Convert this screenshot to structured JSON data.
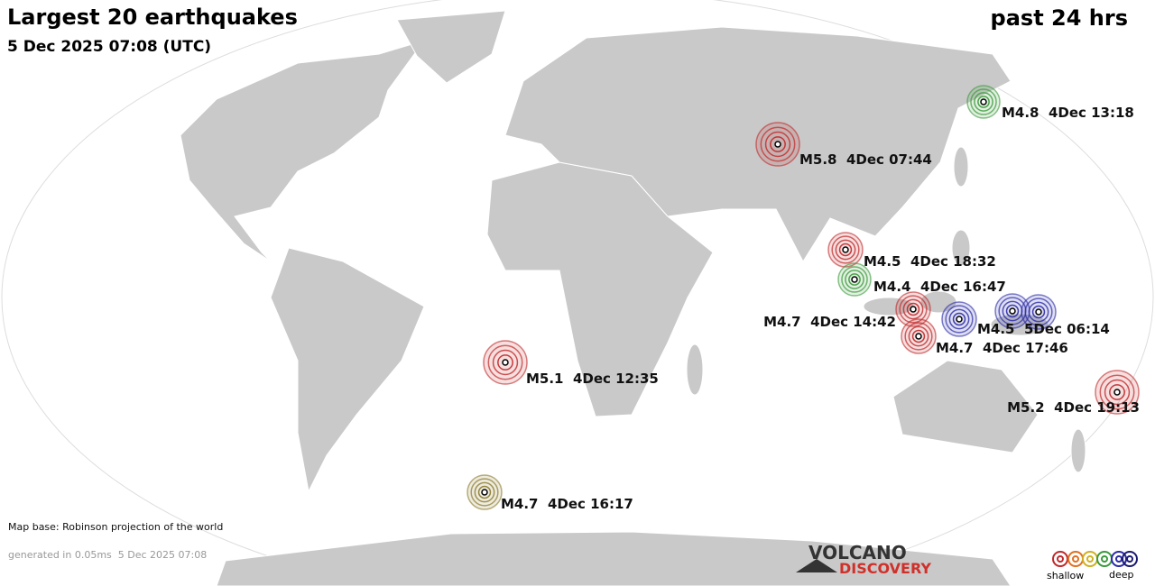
{
  "header": {
    "title": "Largest 20 earthquakes",
    "subtitle": "5 Dec 2025 07:08 (UTC)",
    "period": "past 24 hrs"
  },
  "quakes": [
    {
      "label": "M4.8  4Dec 13:18",
      "color": "#3a9a3a"
    },
    {
      "label": "M5.8  4Dec 07:44",
      "color": "#c0282a"
    },
    {
      "label": "M4.5  4Dec 18:32",
      "color": "#c0282a"
    },
    {
      "label": "M4.4  4Dec 16:47",
      "color": "#3a9a3a"
    },
    {
      "label": "M4.7  4Dec 14:42",
      "color": "#c0282a"
    },
    {
      "label": "M4.5  5Dec 06:14",
      "color": "#2a2aa8"
    },
    {
      "label": "M4.7  4Dec 17:46",
      "color": "#c0282a"
    },
    {
      "label": "M5.1  4Dec 12:35",
      "color": "#c0282a"
    },
    {
      "label": "M5.2  4Dec 19:13",
      "color": "#c0282a"
    },
    {
      "label": "M4.7  4Dec 16:17",
      "color": "#8a7a2a"
    }
  ],
  "footer": {
    "map_base": "Map base: Robinson projection of the world",
    "generated": "generated in 0.05ms  5 Dec 2025 07:08",
    "logo_top": "VOLCANO",
    "logo_bottom": "DISCOVERY",
    "legend_shallow": "shallow",
    "legend_deep": "deep"
  }
}
